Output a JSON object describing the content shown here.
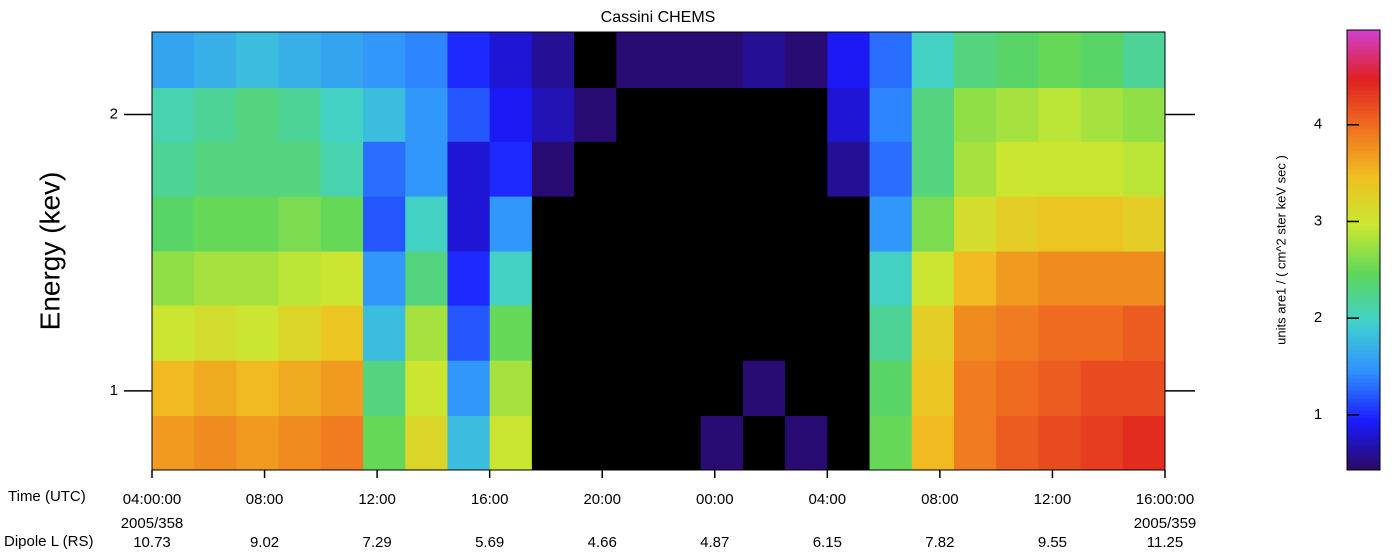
{
  "chart_data": {
    "type": "heatmap",
    "title": "Cassini CHEMS",
    "y_label": "Energy (kev)",
    "x_label": "Time (UTC)",
    "aux_label": "Dipole L (RS)",
    "colorbar_label": "units are1 / ( cm^2 ster keV sec )",
    "xlim": [
      0,
      36
    ],
    "xticks": [
      {
        "value": 0,
        "label": "04:00:00"
      },
      {
        "value": 4,
        "label": "08:00"
      },
      {
        "value": 8,
        "label": "12:00"
      },
      {
        "value": 12,
        "label": "16:00"
      },
      {
        "value": 16,
        "label": "20:00"
      },
      {
        "value": 20,
        "label": "00:00"
      },
      {
        "value": 24,
        "label": "04:00"
      },
      {
        "value": 28,
        "label": "08:00"
      },
      {
        "value": 32,
        "label": "12:00"
      },
      {
        "value": 36,
        "label": "16:00:00"
      }
    ],
    "date_labels": [
      {
        "value": 0,
        "label": "2005/358"
      },
      {
        "value": 36,
        "label": "2005/359"
      }
    ],
    "dipole_l": [
      10.73,
      9.02,
      7.29,
      5.69,
      4.66,
      4.87,
      6.15,
      7.82,
      9.55,
      11.25
    ],
    "ylim": [
      0.82,
      2.46
    ],
    "log_y": true,
    "yticks": [
      1,
      2
    ],
    "clim": [
      0.43,
      4.98
    ],
    "cticks": [
      1,
      2,
      3,
      4
    ],
    "colormap": [
      "#2a0a5e",
      "#1a1aff",
      "#2f8fff",
      "#40d0d0",
      "#5cd65c",
      "#c8e832",
      "#f0c020",
      "#f07020",
      "#e02020",
      "#d040d0"
    ],
    "under_color": "#000000",
    "xbins": [
      0,
      1.5,
      3,
      4.5,
      6,
      7.5,
      9,
      10.5,
      12,
      13.5,
      15,
      16.5,
      18,
      19.5,
      21,
      22.5,
      24,
      25.5,
      27,
      28.5,
      30,
      31.5,
      33,
      34.5,
      36
    ],
    "ybins": [
      0.82,
      0.94,
      1.08,
      1.24,
      1.42,
      1.63,
      1.87,
      2.14,
      2.46
    ],
    "z": [
      [
        3.7,
        3.8,
        3.7,
        3.8,
        3.9,
        2.5,
        3.2,
        1.8,
        3.0,
        0,
        0,
        0,
        0,
        0.5,
        0,
        0.5,
        0,
        2.5,
        3.5,
        3.9,
        4.1,
        4.2,
        4.3,
        4.4
      ],
      [
        3.5,
        3.6,
        3.5,
        3.6,
        3.7,
        2.3,
        3.0,
        1.5,
        2.8,
        0,
        0,
        0,
        0,
        0,
        0.5,
        0,
        0,
        2.4,
        3.4,
        3.9,
        4.0,
        4.1,
        4.2,
        4.2
      ],
      [
        3.0,
        3.1,
        3.0,
        3.2,
        3.4,
        1.8,
        2.8,
        1.2,
        2.5,
        0,
        0,
        0,
        0,
        0,
        0,
        0,
        0,
        2.2,
        3.3,
        3.8,
        3.9,
        4.0,
        4.0,
        4.1
      ],
      [
        2.7,
        2.8,
        2.8,
        2.9,
        3.0,
        1.5,
        2.3,
        1.0,
        2.0,
        0,
        0,
        0,
        0,
        0,
        0,
        0,
        0,
        2.0,
        3.0,
        3.5,
        3.7,
        3.8,
        3.8,
        3.8
      ],
      [
        2.4,
        2.5,
        2.5,
        2.6,
        2.5,
        1.2,
        2.0,
        0.8,
        1.5,
        0,
        0,
        0,
        0,
        0,
        0,
        0,
        0,
        1.5,
        2.6,
        3.1,
        3.3,
        3.4,
        3.4,
        3.3
      ],
      [
        2.2,
        2.3,
        2.3,
        2.3,
        2.1,
        1.3,
        1.5,
        0.8,
        1.0,
        0.5,
        0,
        0,
        0,
        0,
        0,
        0,
        0.6,
        1.3,
        2.3,
        2.8,
        3.0,
        3.0,
        3.0,
        2.9
      ],
      [
        2.1,
        2.2,
        2.3,
        2.2,
        2.0,
        1.8,
        1.5,
        1.2,
        0.9,
        0.7,
        0.5,
        0,
        0,
        0,
        0,
        0,
        0.8,
        1.4,
        2.3,
        2.7,
        2.8,
        2.9,
        2.8,
        2.7
      ],
      [
        1.6,
        1.7,
        1.8,
        1.7,
        1.6,
        1.5,
        1.4,
        1.0,
        0.8,
        0.6,
        0.4,
        0.5,
        0.5,
        0.5,
        0.6,
        0.5,
        0.9,
        1.3,
        2.0,
        2.3,
        2.4,
        2.5,
        2.4,
        2.2
      ]
    ]
  }
}
